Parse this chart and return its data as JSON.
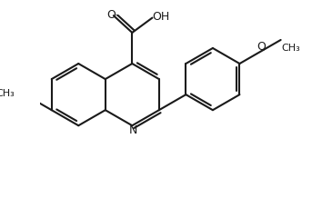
{
  "background": "#ffffff",
  "lc": "#1a1a1a",
  "lw": 1.5,
  "fs": 9.0,
  "sc": 0.38,
  "dbo": 0.038,
  "figsize": [
    3.54,
    2.18
  ],
  "dpi": 100,
  "xlim": [
    0.05,
    3.49
  ],
  "ylim": [
    0.02,
    2.16
  ]
}
